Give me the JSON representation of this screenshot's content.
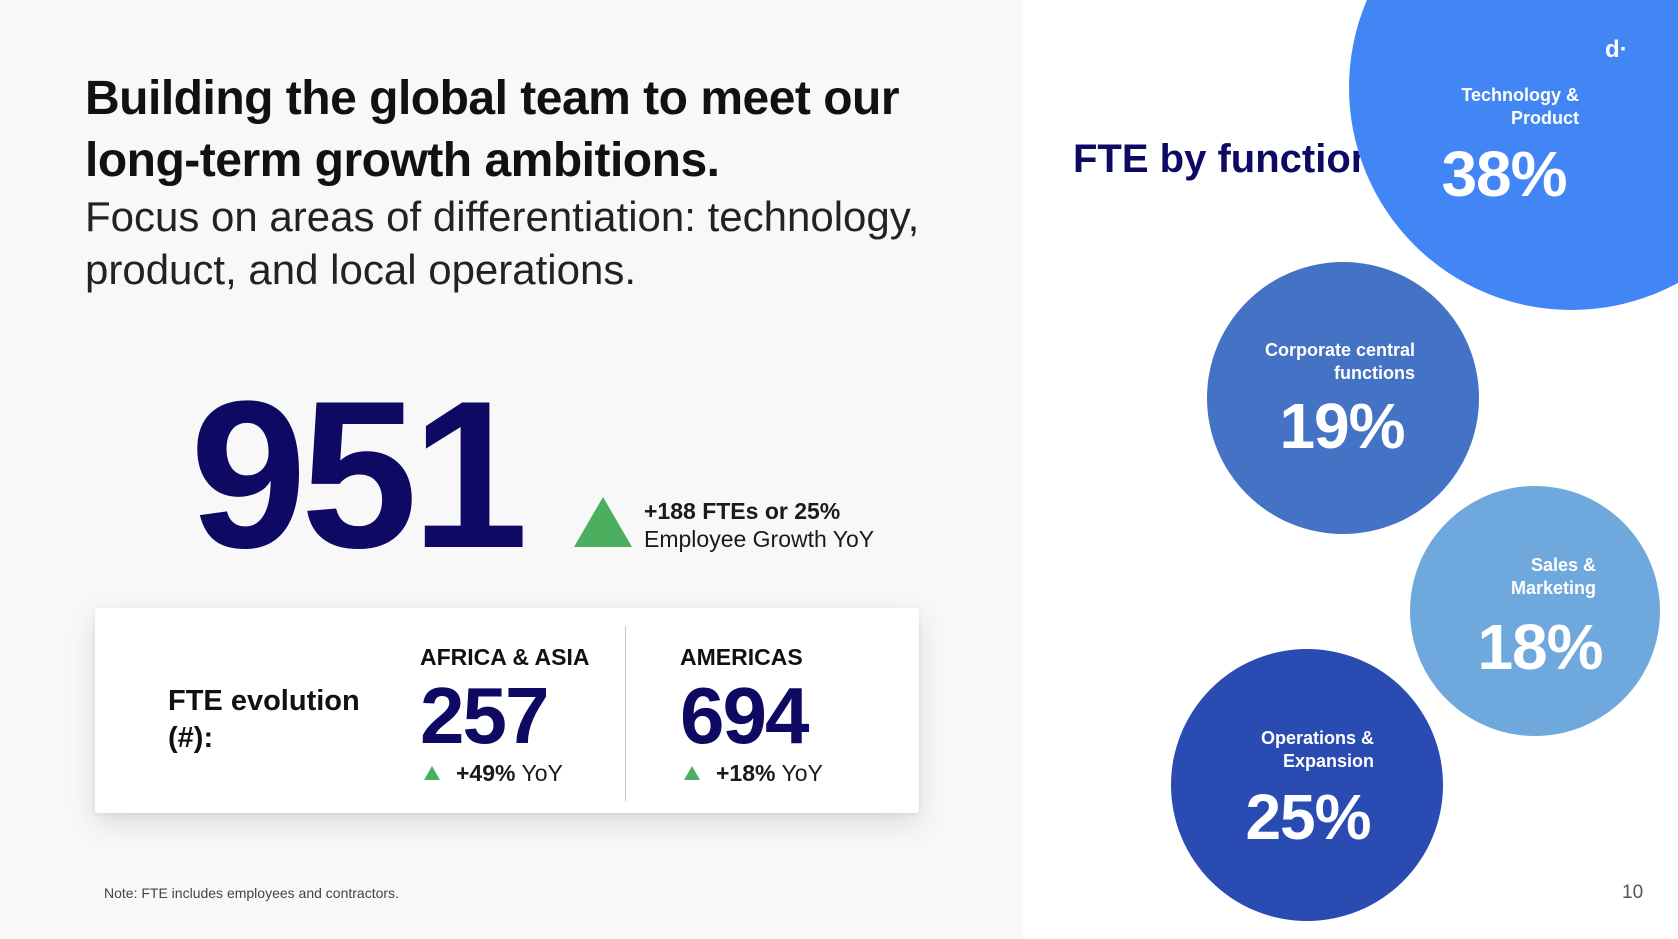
{
  "title": "Building the global team to meet our long-term growth ambitions.",
  "subtitle": "Focus on areas of differentiation: technology, product, and local operations.",
  "total": {
    "value": "951",
    "growth_strong": "+188 FTEs or 25%",
    "growth_text": "Employee Growth YoY"
  },
  "evolution": {
    "label": "FTE evolution (#):",
    "regions": [
      {
        "name": "AFRICA & ASIA",
        "value": "257",
        "growth_strong": "+49%",
        "growth_text": "YoY"
      },
      {
        "name": "AMERICAS",
        "value": "694",
        "growth_strong": "+18%",
        "growth_text": "YoY"
      }
    ]
  },
  "footnote": "Note: FTE includes employees and contractors.",
  "function_title": "FTE by function (%):",
  "functions": [
    {
      "label": "Technology & Product",
      "value": "38%",
      "percent": 38,
      "color": "#4285f4"
    },
    {
      "label": "Corporate central functions",
      "value": "19%",
      "percent": 19,
      "color": "#4472c4"
    },
    {
      "label": "Sales & Marketing",
      "value": "18%",
      "percent": 18,
      "color": "#6fa8dc"
    },
    {
      "label": "Operations & Expansion",
      "value": "25%",
      "percent": 25,
      "color": "#2a4bb2"
    }
  ],
  "colors": {
    "navy": "#0e0a63",
    "growth_green": "#4cae5f",
    "panel_gray": "#f8f8f8"
  },
  "icons": {
    "growth": "up-triangle-icon",
    "logo": "brand-logo"
  },
  "logo_text": "d·",
  "page_number": "10"
}
